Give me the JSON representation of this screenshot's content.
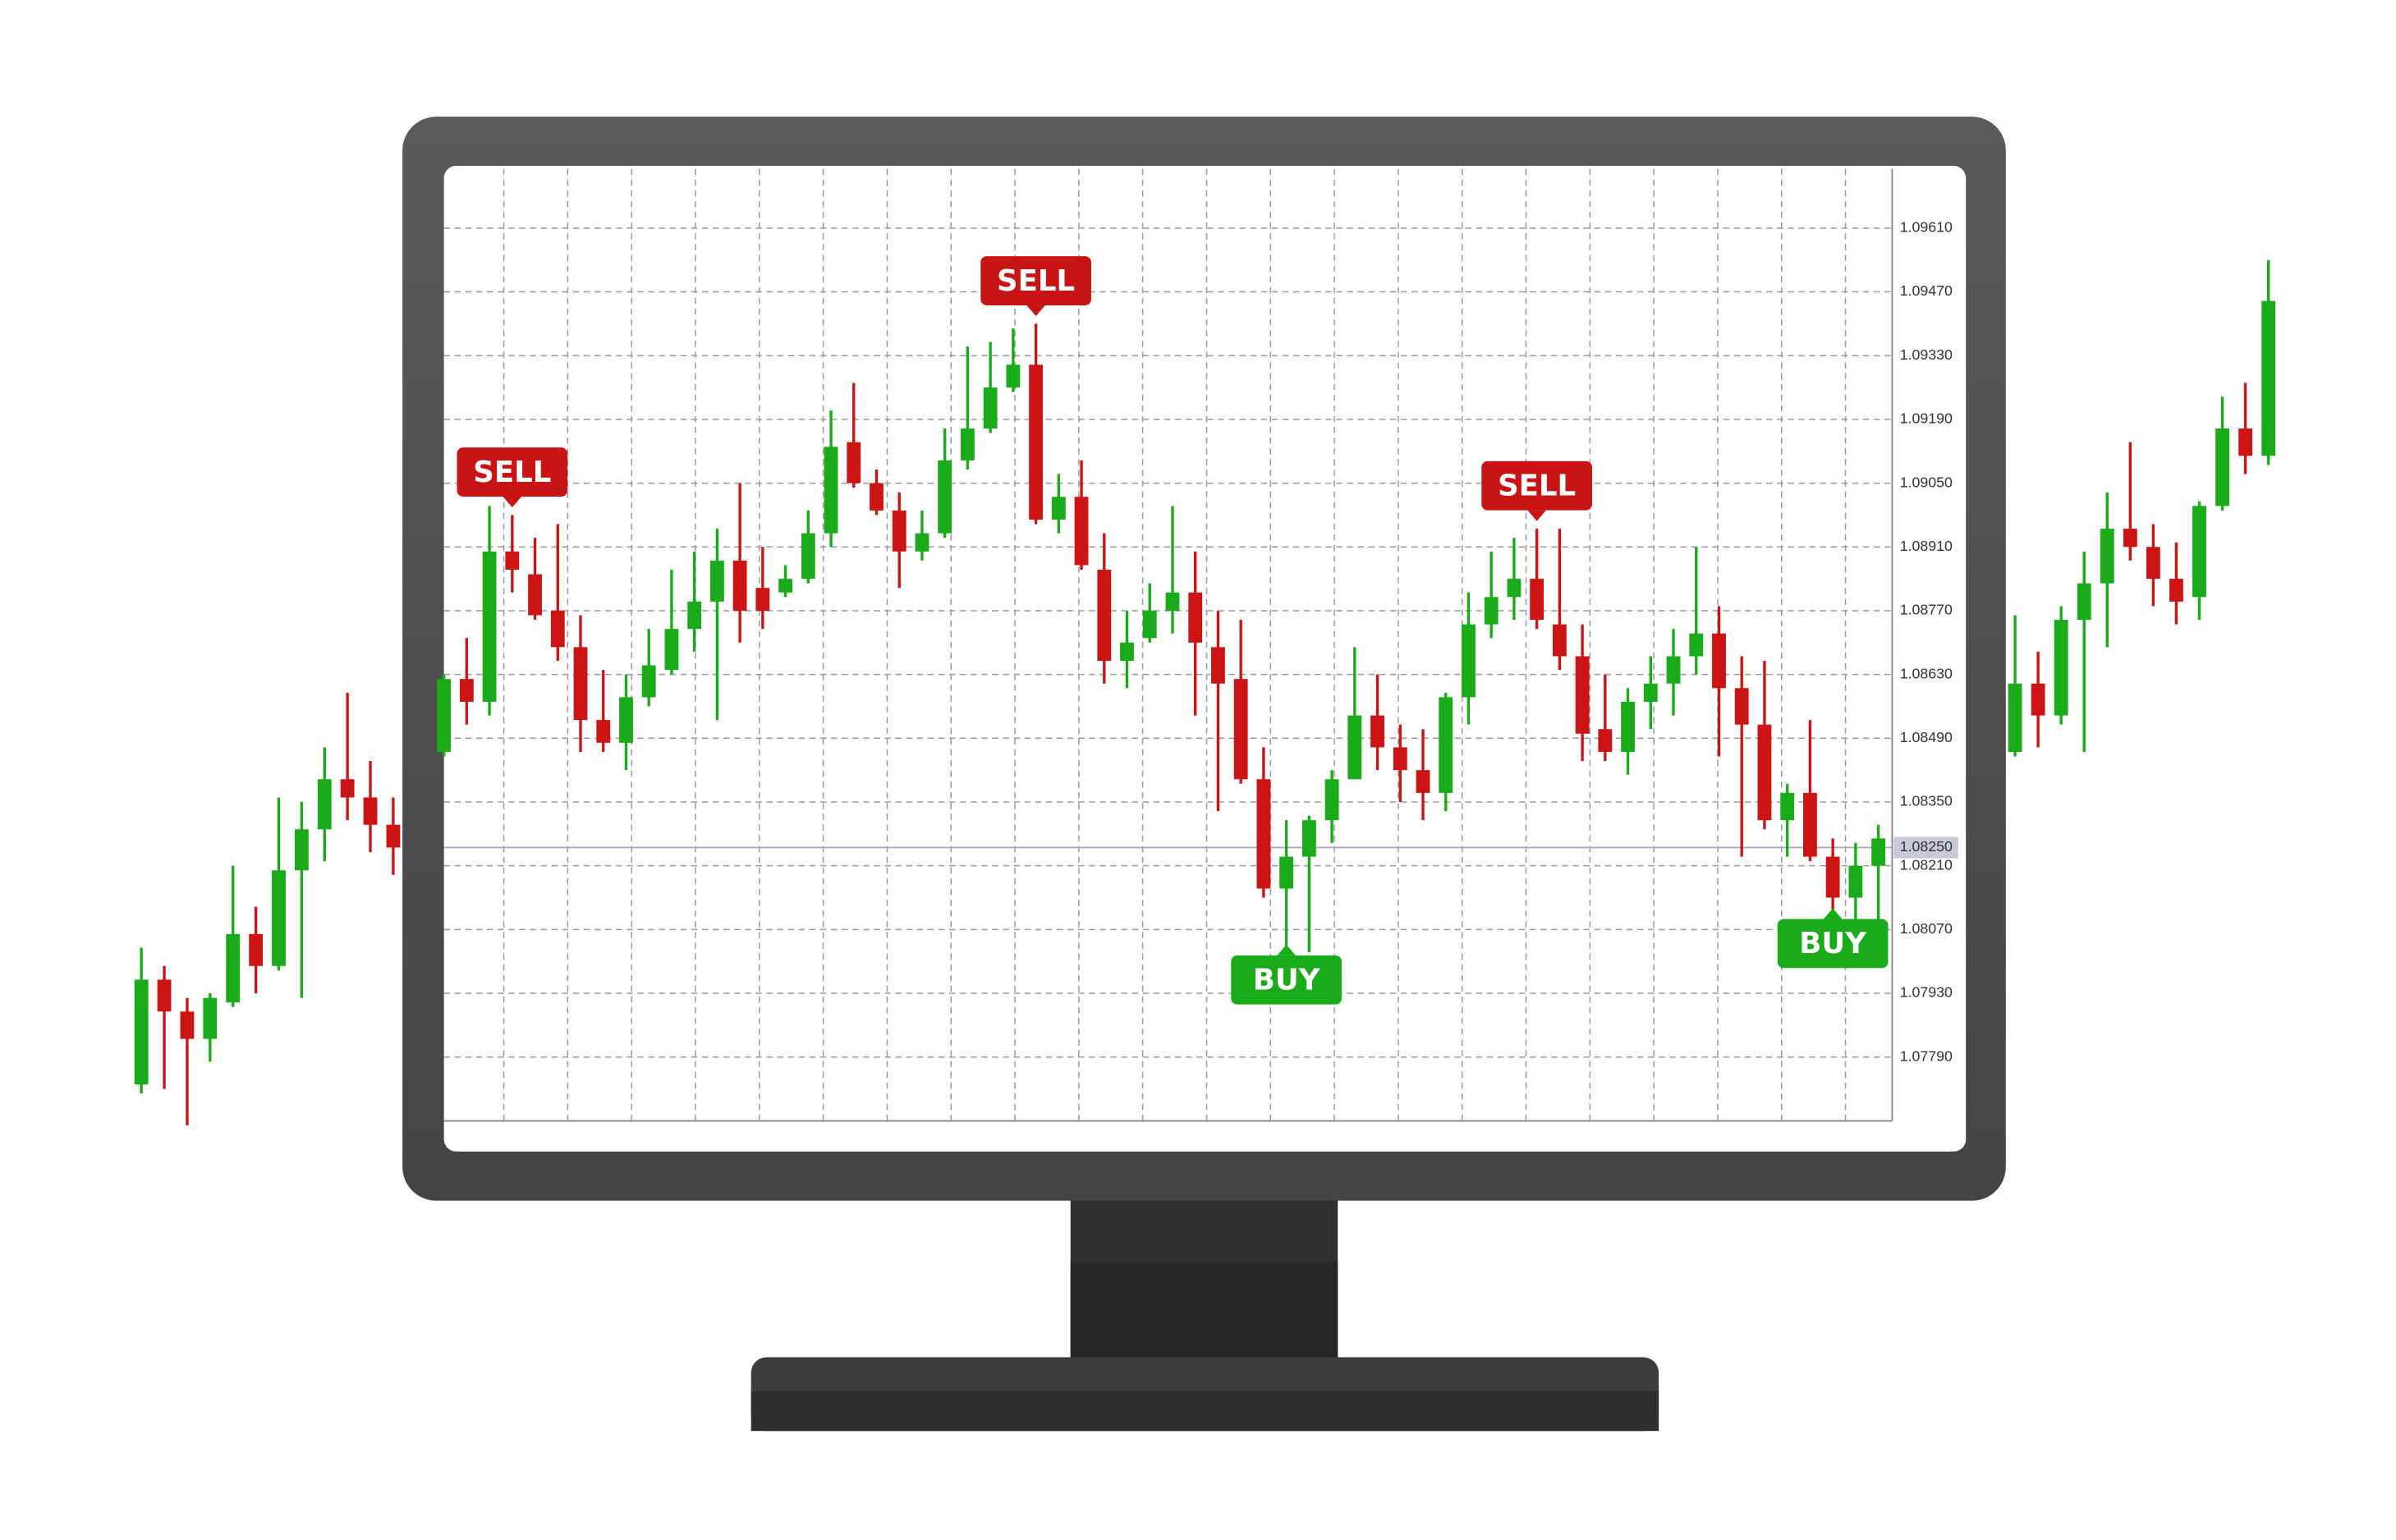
{
  "chart_data": [
    {
      "type": "candlestick",
      "color_up": "#1aab1a",
      "color_down": "#cc1414",
      "grid": true,
      "ylim": [
        1.0765,
        1.0974
      ],
      "yticks": [
        {
          "value": 1.0961,
          "label": "1.09610"
        },
        {
          "value": 1.0947,
          "label": "1.09470"
        },
        {
          "value": 1.0933,
          "label": "1.09330"
        },
        {
          "value": 1.0919,
          "label": "1.09190"
        },
        {
          "value": 1.0905,
          "label": "1.09050"
        },
        {
          "value": 1.0891,
          "label": "1.08910"
        },
        {
          "value": 1.0877,
          "label": "1.08770"
        },
        {
          "value": 1.0863,
          "label": "1.08630"
        },
        {
          "value": 1.0849,
          "label": "1.08490"
        },
        {
          "value": 1.0835,
          "label": "1.08350"
        },
        {
          "value": 1.0821,
          "label": "1.08210"
        },
        {
          "value": 1.0807,
          "label": "1.08070"
        },
        {
          "value": 1.0793,
          "label": "1.07930"
        },
        {
          "value": 1.0779,
          "label": "1.07790"
        }
      ],
      "current_price": {
        "value": 1.0825,
        "label": "1.08250"
      },
      "open": [
        1.0846,
        1.0862,
        1.0857,
        1.089,
        1.0885,
        1.0877,
        1.0869,
        1.0853,
        1.0848,
        1.0858,
        1.0864,
        1.0873,
        1.0879,
        1.0888,
        1.0882,
        1.0881,
        1.0884,
        1.0894,
        1.0914,
        1.0905,
        1.0899,
        1.089,
        1.0894,
        1.091,
        1.0917,
        1.0926,
        1.0931,
        1.0897,
        1.0902,
        1.0886,
        1.0866,
        1.0871,
        1.0877,
        1.0881,
        1.0869,
        1.0862,
        1.084,
        1.0816,
        1.0823,
        1.0831,
        1.084,
        1.0854,
        1.0847,
        1.0842,
        1.0837,
        1.0858,
        1.0874,
        1.088,
        1.0884,
        1.0874,
        1.0867,
        1.0851,
        1.0846,
        1.0857,
        1.0861,
        1.0867,
        1.0872,
        1.086,
        1.0852,
        1.0831,
        1.0837,
        1.0823,
        1.0814,
        1.0821
      ],
      "high": [
        1.0863,
        1.0871,
        1.09,
        1.0898,
        1.0893,
        1.0896,
        1.0876,
        1.0864,
        1.0863,
        1.0873,
        1.0886,
        1.089,
        1.0895,
        1.0905,
        1.0891,
        1.0887,
        1.0899,
        1.0921,
        1.0927,
        1.0908,
        1.0903,
        1.0899,
        1.0917,
        1.0935,
        1.0936,
        1.0939,
        1.094,
        1.0907,
        1.091,
        1.0894,
        1.0877,
        1.0883,
        1.09,
        1.089,
        1.0877,
        1.0875,
        1.0847,
        1.0831,
        1.0832,
        1.0842,
        1.0869,
        1.0863,
        1.0852,
        1.0851,
        1.0859,
        1.0881,
        1.089,
        1.0893,
        1.0895,
        1.0895,
        1.0874,
        1.0863,
        1.086,
        1.0867,
        1.0873,
        1.0891,
        1.0878,
        1.0867,
        1.0866,
        1.0839,
        1.0853,
        1.0827,
        1.0826,
        1.083
      ],
      "low": [
        1.0845,
        1.0852,
        1.0854,
        1.0881,
        1.0875,
        1.0866,
        1.0846,
        1.0846,
        1.0842,
        1.0856,
        1.0863,
        1.0868,
        1.0853,
        1.087,
        1.0873,
        1.088,
        1.0883,
        1.0891,
        1.0904,
        1.0898,
        1.0882,
        1.0888,
        1.0893,
        1.0908,
        1.0916,
        1.0925,
        1.0896,
        1.0894,
        1.0886,
        1.0861,
        1.086,
        1.087,
        1.0872,
        1.0854,
        1.0833,
        1.0839,
        1.0814,
        1.0802,
        1.0802,
        1.0826,
        1.084,
        1.0842,
        1.0835,
        1.0831,
        1.0833,
        1.0852,
        1.0871,
        1.0875,
        1.0873,
        1.0864,
        1.0844,
        1.0844,
        1.0841,
        1.0851,
        1.0854,
        1.0863,
        1.0845,
        1.0823,
        1.0829,
        1.0823,
        1.0822,
        1.081,
        1.0804,
        1.0804
      ],
      "close": [
        1.0862,
        1.0857,
        1.089,
        1.0886,
        1.0876,
        1.0869,
        1.0853,
        1.0848,
        1.0858,
        1.0865,
        1.0873,
        1.0879,
        1.0888,
        1.0877,
        1.0877,
        1.0884,
        1.0894,
        1.0913,
        1.0905,
        1.0899,
        1.089,
        1.0894,
        1.091,
        1.0917,
        1.0926,
        1.0931,
        1.0897,
        1.0902,
        1.0887,
        1.0866,
        1.087,
        1.0877,
        1.0881,
        1.087,
        1.0861,
        1.084,
        1.0816,
        1.0823,
        1.0831,
        1.084,
        1.0854,
        1.0847,
        1.0842,
        1.0837,
        1.0858,
        1.0874,
        1.088,
        1.0884,
        1.0875,
        1.0867,
        1.085,
        1.0846,
        1.0857,
        1.0861,
        1.0867,
        1.0872,
        1.086,
        1.0852,
        1.0831,
        1.0837,
        1.0823,
        1.0814,
        1.0821,
        1.0827
      ],
      "annotations": [
        {
          "label": "SELL",
          "index": 3,
          "side": "above",
          "color": "#c81414"
        },
        {
          "label": "SELL",
          "index": 26,
          "side": "above",
          "color": "#c81414"
        },
        {
          "label": "SELL",
          "index": 48,
          "side": "above",
          "color": "#c81414"
        },
        {
          "label": "BUY",
          "index": 37,
          "side": "below",
          "color": "#1aab1a"
        },
        {
          "label": "BUY",
          "index": 61,
          "side": "below",
          "color": "#1aab1a"
        }
      ]
    },
    {
      "type": "candlestick",
      "color_up": "#1aab1a",
      "color_down": "#cc1414",
      "open": [
        1.0773,
        1.0796,
        1.0789,
        1.0783,
        1.0791,
        1.0806,
        1.0799,
        1.082,
        1.0829,
        1.084,
        1.0836,
        1.083
      ],
      "high": [
        1.0803,
        1.0799,
        1.0792,
        1.0793,
        1.0821,
        1.0812,
        1.0836,
        1.0835,
        1.0847,
        1.0859,
        1.0844,
        1.0836
      ],
      "low": [
        1.0771,
        1.0772,
        1.0764,
        1.0778,
        1.079,
        1.0793,
        1.0798,
        1.0792,
        1.0822,
        1.0831,
        1.0824,
        1.0819
      ],
      "close": [
        1.0796,
        1.0789,
        1.0783,
        1.0792,
        1.0806,
        1.0799,
        1.082,
        1.0829,
        1.084,
        1.0836,
        1.083,
        1.0825
      ]
    },
    {
      "type": "candlestick",
      "color_up": "#1aab1a",
      "color_down": "#cc1414",
      "open": [
        1.0846,
        1.0861,
        1.0854,
        1.0875,
        1.0883,
        1.0895,
        1.0891,
        1.0884,
        1.088,
        1.09,
        1.0917,
        1.0911
      ],
      "high": [
        1.0876,
        1.0868,
        1.0878,
        1.089,
        1.0903,
        1.0914,
        1.0896,
        1.0892,
        1.0901,
        1.0924,
        1.0927,
        1.0954
      ],
      "low": [
        1.0845,
        1.0847,
        1.0852,
        1.0846,
        1.0869,
        1.0888,
        1.0878,
        1.0874,
        1.0875,
        1.0899,
        1.0907,
        1.0909
      ],
      "close": [
        1.0861,
        1.0854,
        1.0875,
        1.0883,
        1.0895,
        1.0891,
        1.0884,
        1.0879,
        1.09,
        1.0917,
        1.0911,
        1.0945
      ]
    }
  ]
}
